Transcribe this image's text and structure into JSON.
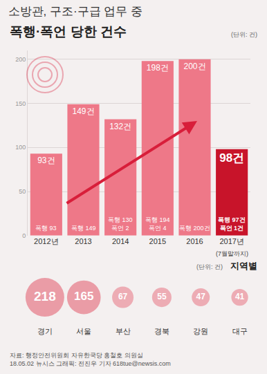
{
  "chart_data": [
    {
      "type": "bar",
      "title": "소방관, 구조·구급 업무 중",
      "subtitle": "폭행·폭언 당한 건수",
      "unit": "(단위: 건)",
      "categories": [
        "2012년",
        "2013",
        "2014",
        "2015",
        "2016",
        "2017년"
      ],
      "values": [
        93,
        149,
        132,
        198,
        200,
        98
      ],
      "value_labels": [
        "93건",
        "149건",
        "132건",
        "198건",
        "200건",
        "98건"
      ],
      "colors": [
        "#ee7888",
        "#ee7888",
        "#ee7888",
        "#ee7888",
        "#ee7888",
        "#c8142a"
      ],
      "breakdown": [
        [
          "폭행 93"
        ],
        [
          "폭행 149"
        ],
        [
          "폭행 130",
          "폭언 2"
        ],
        [
          "폭행 194",
          "폭언 4"
        ],
        [
          "폭행 200건"
        ],
        [
          "폭행 97건",
          "폭언 1건"
        ]
      ],
      "annotations": [
        {
          "category": "2017년",
          "text": "(7월말까지)"
        }
      ],
      "ylim": [
        0,
        210
      ],
      "yticks": [
        0,
        50,
        100,
        150,
        200
      ],
      "grid": true,
      "data_labels": true
    },
    {
      "type": "bubble",
      "title": "지역별",
      "unit": "(단위: 건)",
      "categories": [
        "경기",
        "서울",
        "부산",
        "경북",
        "강원",
        "대구"
      ],
      "values": [
        218,
        165,
        67,
        55,
        47,
        41
      ],
      "colors": [
        "#e57886",
        "#e57886",
        "#e98f9a",
        "#e98f9a",
        "#e98f9a",
        "#e98f9a"
      ],
      "data_labels": true,
      "tick_labels": "x"
    }
  ],
  "source": [
    "자료: 행정안전위원회 자유한국당 홍철호 의원실",
    "18.05.02 뉴시스 그래픽: 전진우 기자 618tue@newsis.com"
  ]
}
